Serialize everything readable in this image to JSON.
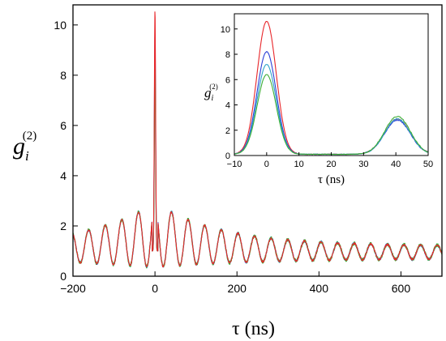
{
  "chart_data": [
    {
      "type": "line",
      "panel": "main",
      "xlabel": "τ (ns)",
      "ylabel_symbol": "g",
      "ylabel_sub": "i",
      "ylabel_sup": "(2)",
      "xlim": [
        -200,
        700
      ],
      "ylim": [
        0,
        10.8
      ],
      "xticks": [
        -200,
        0,
        200,
        400,
        600
      ],
      "xtick_labels": [
        "−200",
        "0",
        "200",
        "400",
        "600"
      ],
      "yticks": [
        0,
        2,
        4,
        6,
        8,
        10
      ],
      "ytick_labels": [
        "0",
        "2",
        "4",
        "6",
        "8",
        "10"
      ],
      "grid": false,
      "series": [
        {
          "color": "#e8262a",
          "peak_zero": 10.6,
          "peak_first": 3.1,
          "period": 40.5
        },
        {
          "color": "#2b3fd6",
          "peak_zero": 9.6,
          "peak_first": 3.0,
          "period": 40.5
        },
        {
          "color": "#2ea3c9",
          "peak_zero": 8.7,
          "peak_first": 3.0,
          "period": 40.5
        },
        {
          "color": "#3fae38",
          "peak_zero": 8.3,
          "peak_first": 3.0,
          "period": 40.5
        }
      ]
    },
    {
      "type": "line",
      "panel": "inset",
      "xlabel": "τ (ns)",
      "ylabel_symbol": "g",
      "ylabel_sub": "i",
      "ylabel_sup": "(2)",
      "xlim": [
        -10,
        50
      ],
      "ylim": [
        0,
        11.2
      ],
      "xticks": [
        -10,
        0,
        10,
        20,
        30,
        40,
        50
      ],
      "xtick_labels": [
        "−10",
        "0",
        "10",
        "20",
        "30",
        "40",
        "50"
      ],
      "yticks": [
        0,
        2,
        4,
        6,
        8,
        10
      ],
      "ytick_labels": [
        "0",
        "2",
        "4",
        "6",
        "8",
        "10"
      ],
      "grid": false,
      "series": [
        {
          "color": "#e8262a",
          "peak_zero": 10.6,
          "peak_second": 2.9
        },
        {
          "color": "#2b3fd6",
          "peak_zero": 8.2,
          "peak_second": 2.8
        },
        {
          "color": "#2ea3c9",
          "peak_zero": 7.2,
          "peak_second": 2.9
        },
        {
          "color": "#3fae38",
          "peak_zero": 6.4,
          "peak_second": 3.1
        }
      ]
    }
  ]
}
